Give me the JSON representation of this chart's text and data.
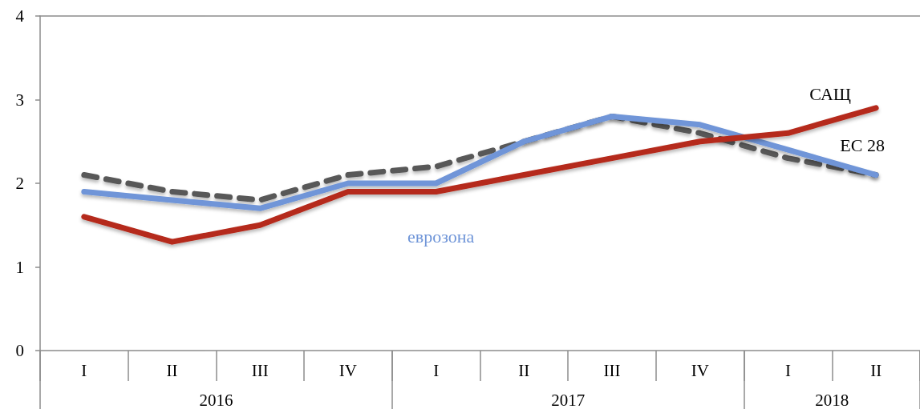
{
  "chart_data": {
    "type": "line",
    "categories": [
      "I",
      "II",
      "III",
      "IV",
      "I",
      "II",
      "III",
      "IV",
      "I",
      "II"
    ],
    "annotations": [
      "2016",
      "2017",
      "2018"
    ],
    "series": [
      {
        "name": "ЕС 28",
        "color": "#595959",
        "line_style": "dashed",
        "values": [
          2.1,
          1.9,
          1.8,
          2.1,
          2.2,
          2.5,
          2.8,
          2.6,
          2.3,
          2.1
        ]
      },
      {
        "name": "еврозона",
        "color": "#6f95d8",
        "values": [
          1.9,
          1.8,
          1.7,
          2.0,
          2.0,
          2.5,
          2.8,
          2.7,
          2.4,
          2.1
        ]
      },
      {
        "name": "САЩ",
        "color": "#b5291a",
        "values": [
          1.6,
          1.3,
          1.5,
          1.9,
          1.9,
          2.1,
          2.3,
          2.5,
          2.6,
          2.9
        ]
      }
    ],
    "ylim": [
      0,
      4
    ],
    "yticks": [
      0,
      1,
      2,
      3,
      4
    ],
    "grid": false,
    "legend": false,
    "marker": "none",
    "line_style": "solid"
  }
}
